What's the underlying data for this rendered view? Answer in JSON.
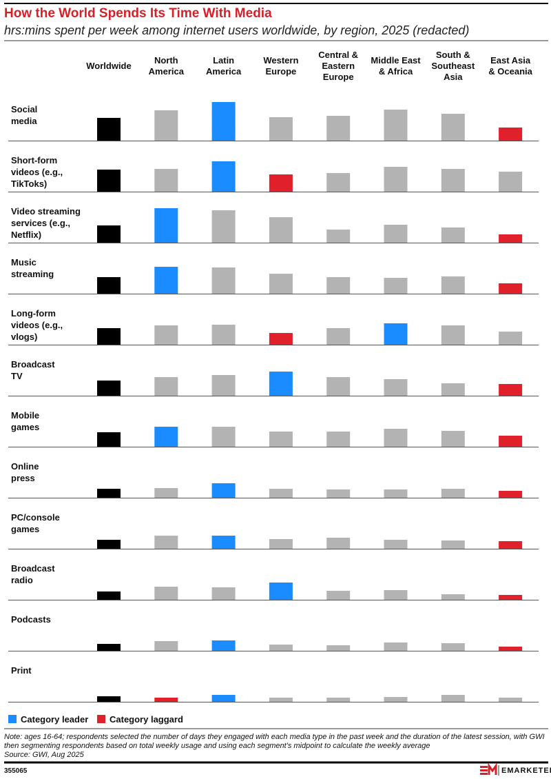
{
  "chart_data": {
    "type": "bar",
    "title": "How the World Spends Its Time With Media",
    "subtitle": "hrs:mins spent per week among internet users worldwide, by region, 2025 (redacted)",
    "categories": [
      "Worldwide",
      "North\nAmerica",
      "Latin\nAmerica",
      "Western\nEurope",
      "Central &\nEastern\nEurope",
      "Middle East\n& Africa",
      "South &\nSoutheast\nAsia",
      "East Asia\n& Oceania"
    ],
    "rows": [
      {
        "label": "Social\nmedia",
        "values": [
          16.5,
          22,
          28,
          17,
          18,
          22.5,
          19.5,
          9.5
        ],
        "colors": [
          "#000000",
          "#b3b3b3",
          "#1a8cff",
          "#b3b3b3",
          "#b3b3b3",
          "#b3b3b3",
          "#b3b3b3",
          "#e0202a"
        ]
      },
      {
        "label": "Short-form\nvideos (e.g.,\nTikToks)",
        "values": [
          16,
          16.5,
          22,
          12.5,
          13.5,
          18,
          16.5,
          14.5
        ],
        "colors": [
          "#000000",
          "#b3b3b3",
          "#1a8cff",
          "#e0202a",
          "#b3b3b3",
          "#b3b3b3",
          "#b3b3b3",
          "#b3b3b3"
        ]
      },
      {
        "label": "Video streaming\nservices (e.g.,\nNetflix)",
        "values": [
          12.5,
          25,
          23.5,
          18.5,
          9.5,
          13,
          11,
          6
        ],
        "colors": [
          "#000000",
          "#1a8cff",
          "#b3b3b3",
          "#b3b3b3",
          "#b3b3b3",
          "#b3b3b3",
          "#b3b3b3",
          "#e0202a"
        ]
      },
      {
        "label": "Music\nstreaming",
        "values": [
          12,
          19.5,
          19,
          14.5,
          12,
          11.5,
          12.5,
          7.5
        ],
        "colors": [
          "#000000",
          "#1a8cff",
          "#b3b3b3",
          "#b3b3b3",
          "#b3b3b3",
          "#b3b3b3",
          "#b3b3b3",
          "#e0202a"
        ]
      },
      {
        "label": "Long-form\nvideos (e.g.,\nvlogs)",
        "values": [
          12,
          14,
          14.5,
          8.5,
          12,
          15.5,
          14,
          9.5
        ],
        "colors": [
          "#000000",
          "#b3b3b3",
          "#b3b3b3",
          "#e0202a",
          "#b3b3b3",
          "#1a8cff",
          "#b3b3b3",
          "#b3b3b3"
        ]
      },
      {
        "label": "Broadcast\nTV",
        "values": [
          11,
          13.5,
          15,
          17.5,
          13.5,
          12,
          9,
          8.5
        ],
        "colors": [
          "#000000",
          "#b3b3b3",
          "#b3b3b3",
          "#1a8cff",
          "#b3b3b3",
          "#b3b3b3",
          "#b3b3b3",
          "#e0202a"
        ]
      },
      {
        "label": "Mobile\ngames",
        "values": [
          10.5,
          14.5,
          14.5,
          11,
          11,
          13,
          11.5,
          8
        ],
        "colors": [
          "#000000",
          "#1a8cff",
          "#b3b3b3",
          "#b3b3b3",
          "#b3b3b3",
          "#b3b3b3",
          "#b3b3b3",
          "#e0202a"
        ]
      },
      {
        "label": "Online\npress",
        "values": [
          6.5,
          7,
          10.5,
          6.5,
          6,
          6,
          6.5,
          5
        ],
        "colors": [
          "#000000",
          "#b3b3b3",
          "#1a8cff",
          "#b3b3b3",
          "#b3b3b3",
          "#b3b3b3",
          "#b3b3b3",
          "#e0202a"
        ]
      },
      {
        "label": "PC/console\ngames",
        "values": [
          6.5,
          9.5,
          9.5,
          7,
          8,
          6.5,
          6,
          5.5
        ],
        "colors": [
          "#000000",
          "#b3b3b3",
          "#1a8cff",
          "#b3b3b3",
          "#b3b3b3",
          "#b3b3b3",
          "#b3b3b3",
          "#e0202a"
        ]
      },
      {
        "label": "Broadcast\nradio",
        "values": [
          6,
          9.5,
          9,
          12.5,
          6.5,
          7,
          4,
          3.5
        ],
        "colors": [
          "#000000",
          "#b3b3b3",
          "#b3b3b3",
          "#1a8cff",
          "#b3b3b3",
          "#b3b3b3",
          "#b3b3b3",
          "#e0202a"
        ]
      },
      {
        "label": "Podcasts",
        "values": [
          5,
          7,
          7.5,
          4.5,
          4,
          6,
          5.5,
          3
        ],
        "colors": [
          "#000000",
          "#b3b3b3",
          "#1a8cff",
          "#b3b3b3",
          "#b3b3b3",
          "#b3b3b3",
          "#b3b3b3",
          "#e0202a"
        ]
      },
      {
        "label": "Print",
        "values": [
          4,
          3,
          5,
          3,
          3,
          3.5,
          5,
          3
        ],
        "colors": [
          "#000000",
          "#e0202a",
          "#1a8cff",
          "#b3b3b3",
          "#b3b3b3",
          "#b3b3b3",
          "#b3b3b3",
          "#b3b3b3"
        ]
      }
    ],
    "legend": [
      {
        "name": "Category leader",
        "color": "#1a8cff"
      },
      {
        "name": "Category laggard",
        "color": "#e0202a"
      }
    ]
  },
  "footer": {
    "note": "Note: ages 16-64; respondents selected the number of days they engaged with each media type in the past week and the duration of the latest session, with GWI then segmenting respondents based on total weekly usage and using each segment's midpoint to calculate the weekly average",
    "source": "Source: GWI, Aug 2025",
    "id": "355065",
    "brand": "EMARKETER"
  }
}
